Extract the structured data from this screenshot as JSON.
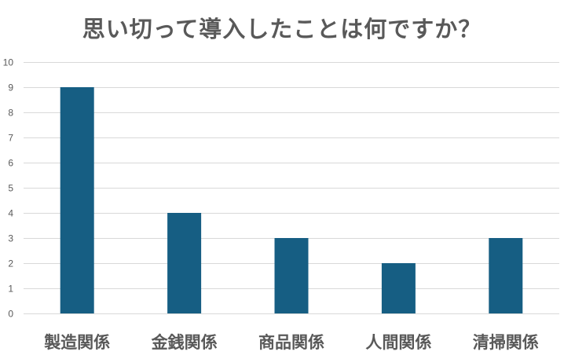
{
  "chart_data": {
    "type": "bar",
    "title": "思い切って導入したことは何ですか？",
    "xlabel": "",
    "ylabel": "",
    "categories": [
      "製造関係",
      "金銭関係",
      "商品関係",
      "人間関係",
      "清掃関係"
    ],
    "values": [
      9,
      4,
      3,
      2,
      3
    ],
    "ylim": [
      0,
      10
    ],
    "yticks": [
      0,
      1,
      2,
      3,
      4,
      5,
      6,
      7,
      8,
      9,
      10
    ],
    "grid": true,
    "legend": "none",
    "bar_color": "#165e83"
  }
}
